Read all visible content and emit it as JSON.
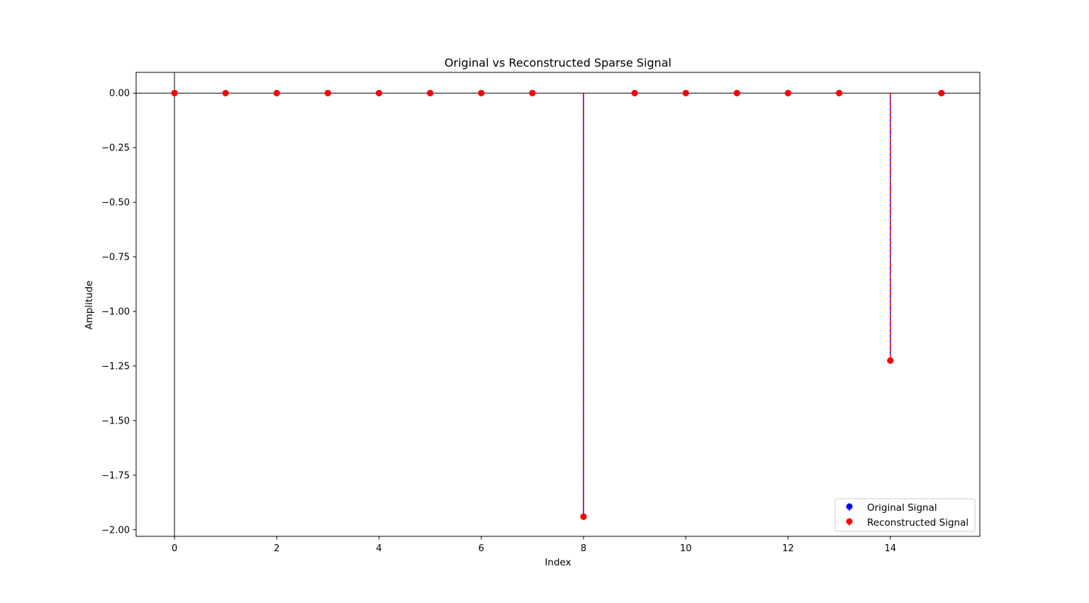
{
  "chart_data": {
    "type": "scatter",
    "title": "Original vs Reconstructed Sparse Signal",
    "xlabel": "Index",
    "ylabel": "Amplitude",
    "xlim": [
      -0.75,
      15.75
    ],
    "ylim": [
      -2.03,
      0.095
    ],
    "x_ticks": [
      0,
      2,
      4,
      6,
      8,
      10,
      12,
      14
    ],
    "x_tick_labels": [
      "0",
      "2",
      "4",
      "6",
      "8",
      "10",
      "12",
      "14"
    ],
    "y_ticks": [
      0.0,
      -0.25,
      -0.5,
      -0.75,
      -1.0,
      -1.25,
      -1.5,
      -1.75,
      -2.0
    ],
    "y_tick_labels": [
      "0.00",
      "−0.25",
      "−0.50",
      "−0.75",
      "−1.00",
      "−1.25",
      "−1.50",
      "−1.75",
      "−2.00"
    ],
    "grid": false,
    "legend_position": "bottom-right",
    "x": [
      0,
      1,
      2,
      3,
      4,
      5,
      6,
      7,
      8,
      9,
      10,
      11,
      12,
      13,
      14,
      15
    ],
    "series": [
      {
        "name": "Original Signal",
        "color": "#0000ff",
        "values": [
          0,
          0,
          0,
          0,
          0,
          0,
          0,
          0,
          -1.94,
          0,
          0,
          0,
          0,
          0,
          -1.225,
          0
        ]
      },
      {
        "name": "Reconstructed Signal",
        "color": "#ff0000",
        "values": [
          0,
          0,
          0,
          0,
          0,
          0,
          0,
          0,
          -1.94,
          0,
          0,
          0,
          0,
          0,
          -1.225,
          0
        ]
      }
    ]
  }
}
